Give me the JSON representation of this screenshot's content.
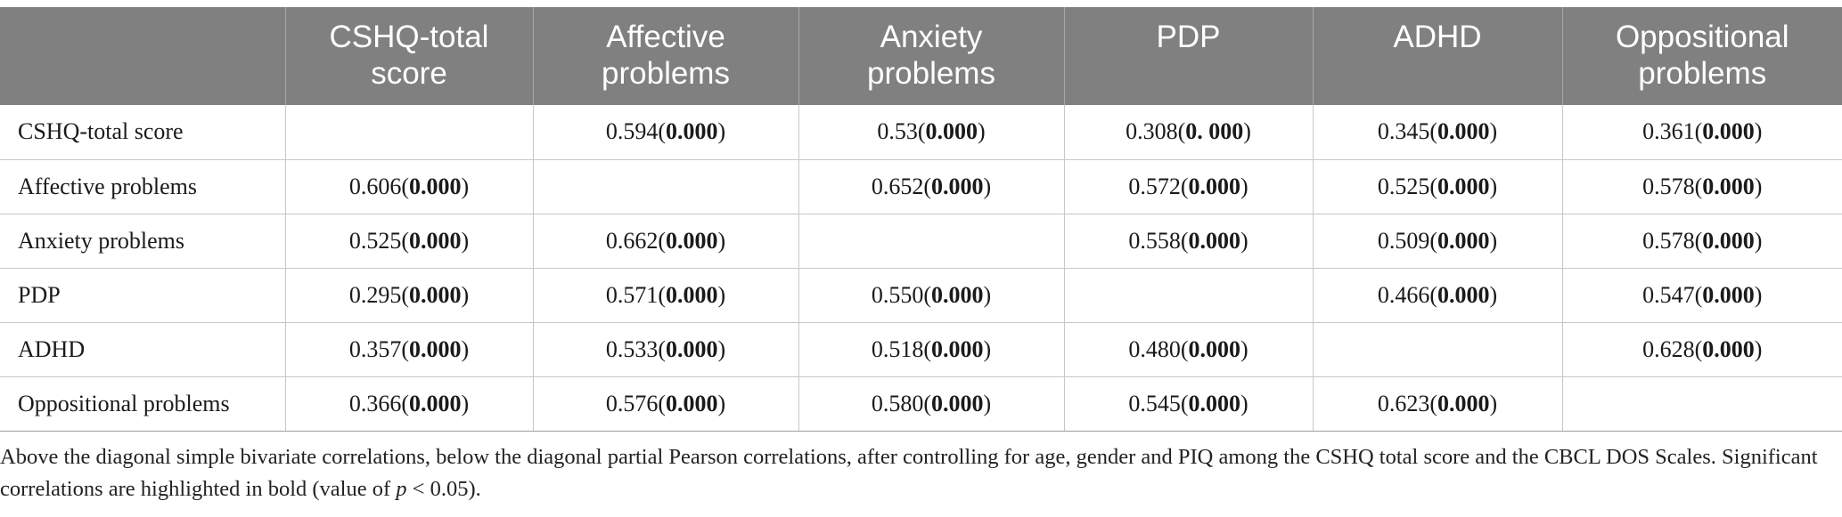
{
  "table": {
    "headers": [
      {
        "line1": "",
        "line2": ""
      },
      {
        "line1": "CSHQ-total",
        "line2": "score"
      },
      {
        "line1": "Affective",
        "line2": "problems"
      },
      {
        "line1": "Anxiety",
        "line2": "problems"
      },
      {
        "line1": "PDP",
        "line2": ""
      },
      {
        "line1": "ADHD",
        "line2": ""
      },
      {
        "line1": "Oppositional",
        "line2": "problems"
      }
    ],
    "rows": [
      {
        "label": "CSHQ-total score",
        "cells": [
          {
            "r": "",
            "p": ""
          },
          {
            "r": "0.594",
            "p": "0.000"
          },
          {
            "r": "0.53",
            "p": "0.000"
          },
          {
            "r": "0.308",
            "p": "0. 000"
          },
          {
            "r": "0.345",
            "p": "0.000"
          },
          {
            "r": "0.361",
            "p": "0.000"
          }
        ]
      },
      {
        "label": "Affective problems",
        "cells": [
          {
            "r": "0.606",
            "p": "0.000"
          },
          {
            "r": "",
            "p": ""
          },
          {
            "r": "0.652",
            "p": "0.000"
          },
          {
            "r": "0.572",
            "p": "0.000"
          },
          {
            "r": "0.525",
            "p": "0.000"
          },
          {
            "r": "0.578",
            "p": "0.000"
          }
        ]
      },
      {
        "label": "Anxiety problems",
        "cells": [
          {
            "r": "0.525",
            "p": "0.000"
          },
          {
            "r": "0.662",
            "p": "0.000"
          },
          {
            "r": "",
            "p": ""
          },
          {
            "r": "0.558",
            "p": "0.000"
          },
          {
            "r": "0.509",
            "p": "0.000"
          },
          {
            "r": "0.578",
            "p": "0.000"
          }
        ]
      },
      {
        "label": "PDP",
        "cells": [
          {
            "r": "0.295",
            "p": "0.000"
          },
          {
            "r": "0.571",
            "p": "0.000"
          },
          {
            "r": "0.550",
            "p": "0.000"
          },
          {
            "r": "",
            "p": ""
          },
          {
            "r": "0.466",
            "p": "0.000"
          },
          {
            "r": "0.547",
            "p": "0.000"
          }
        ]
      },
      {
        "label": "ADHD",
        "cells": [
          {
            "r": "0.357",
            "p": "0.000"
          },
          {
            "r": "0.533",
            "p": "0.000"
          },
          {
            "r": "0.518",
            "p": "0.000"
          },
          {
            "r": "0.480",
            "p": "0.000"
          },
          {
            "r": "",
            "p": ""
          },
          {
            "r": "0.628",
            "p": "0.000"
          }
        ]
      },
      {
        "label": "Oppositional problems",
        "cells": [
          {
            "r": "0.366",
            "p": "0.000"
          },
          {
            "r": "0.576",
            "p": "0.000"
          },
          {
            "r": "0.580",
            "p": "0.000"
          },
          {
            "r": "0.545",
            "p": "0.000"
          },
          {
            "r": "0.623",
            "p": "0.000"
          },
          {
            "r": "",
            "p": ""
          }
        ]
      }
    ]
  },
  "footnote": {
    "before_italic": "Above the diagonal simple bivariate correlations, below the diagonal partial Pearson correlations, after controlling for age, gender and PIQ among the CSHQ total score and the CBCL DOS Scales. Significant correlations are highlighted in bold (value of ",
    "italic": "p",
    "after_italic": " < 0.05)."
  },
  "colors": {
    "header_bg": "#808080",
    "header_text": "#ffffff",
    "grid_line": "#c8c8c8"
  }
}
